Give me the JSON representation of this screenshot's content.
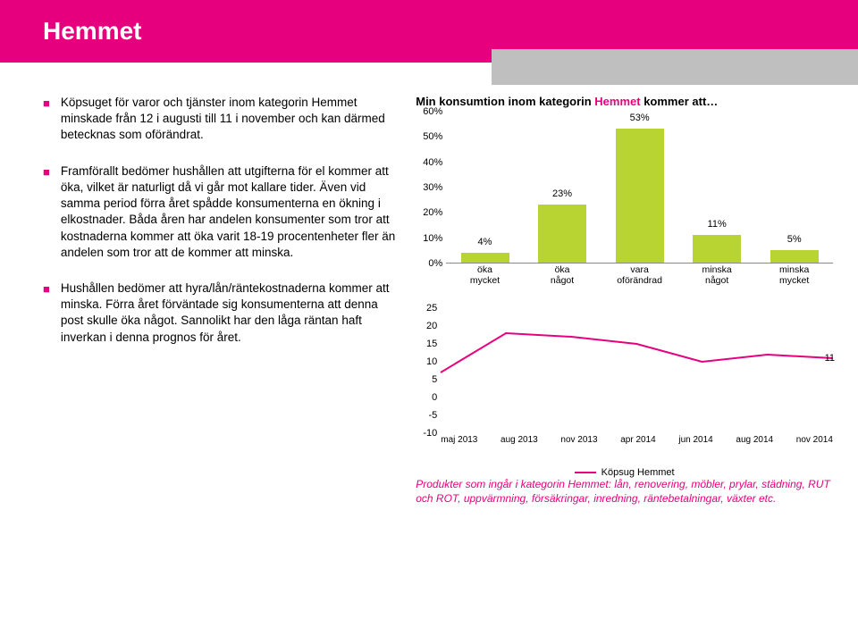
{
  "header": {
    "title": "Hemmet"
  },
  "bullets": [
    "Köpsuget för varor och tjänster inom kategorin Hemmet minskade från 12 i augusti till 11 i november och kan därmed betecknas som oförändrat.",
    "Framförallt bedömer hushållen att utgifterna för el kommer att öka, vilket är naturligt då vi går mot kallare tider. Även vid samma period förra året spådde konsumenterna en ökning i elkostnader. Båda åren har andelen konsumenter som tror att kostnaderna kommer att öka varit 18-19 procentenheter fler än andelen som tror att de kommer att minska.",
    "Hushållen bedömer att hyra/lån/räntekostnaderna kommer att minska. Förra året förväntade sig konsumenterna att denna post skulle öka något. Sannolikt har den låga räntan haft inverkan i denna prognos för året."
  ],
  "barChart": {
    "title_pre": "Min konsumtion inom kategorin ",
    "title_accent": "Hemmet",
    "title_post": " kommer att…",
    "categories": [
      "öka mycket",
      "öka något",
      "vara oförändrad",
      "minska något",
      "minska mycket"
    ],
    "values": [
      4,
      23,
      53,
      11,
      5
    ],
    "value_labels": [
      "4%",
      "23%",
      "53%",
      "11%",
      "5%"
    ],
    "bar_color": "#b7d433",
    "ylim": [
      0,
      60
    ],
    "yticks": [
      "0%",
      "10%",
      "20%",
      "30%",
      "40%",
      "50%",
      "60%"
    ]
  },
  "lineChart": {
    "x_labels": [
      "maj 2013",
      "aug 2013",
      "nov 2013",
      "apr 2014",
      "jun 2014",
      "aug 2014",
      "nov 2014"
    ],
    "values": [
      7,
      18,
      17,
      15,
      10,
      12,
      11
    ],
    "ylim": [
      -10,
      25
    ],
    "yticks": [
      -10,
      -5,
      0,
      5,
      10,
      15,
      20,
      25
    ],
    "line_color": "#e6007e",
    "legend_label": "Köpsug Hemmet",
    "end_value_label": "11"
  },
  "footnote": "Produkter som ingår i kategorin Hemmet: lån, renovering, möbler, prylar, städning, RUT och ROT, uppvärmning, försäkringar, inredning, räntebetalningar, växter etc."
}
